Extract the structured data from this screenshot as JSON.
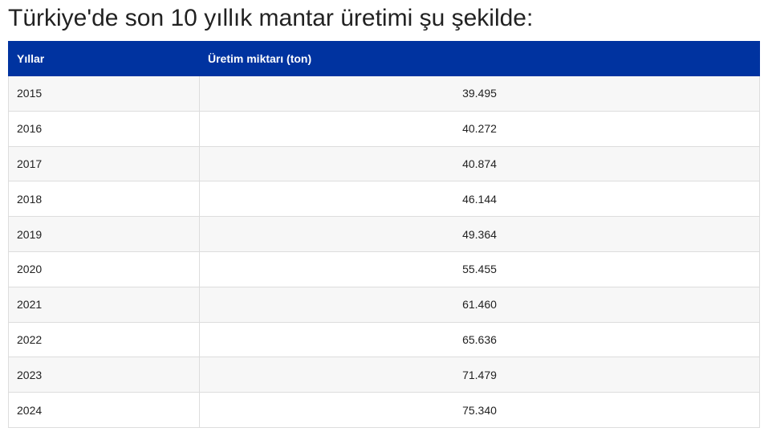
{
  "heading": "Türkiye'de son 10 yıllık mantar üretimi şu şekilde:",
  "table": {
    "headers": [
      "Yıllar",
      "Üretim miktarı (ton)"
    ],
    "rows": [
      [
        "2015",
        "39.495"
      ],
      [
        "2016",
        "40.272"
      ],
      [
        "2017",
        "40.874"
      ],
      [
        "2018",
        "46.144"
      ],
      [
        "2019",
        "49.364"
      ],
      [
        "2020",
        "55.455"
      ],
      [
        "2021",
        "61.460"
      ],
      [
        "2022",
        "65.636"
      ],
      [
        "2023",
        "71.479"
      ],
      [
        "2024",
        "75.340"
      ]
    ]
  },
  "colors": {
    "header_background": "#0033a0",
    "header_text": "#ffffff",
    "row_stripe": "#f7f7f7",
    "border": "#dddddd"
  }
}
